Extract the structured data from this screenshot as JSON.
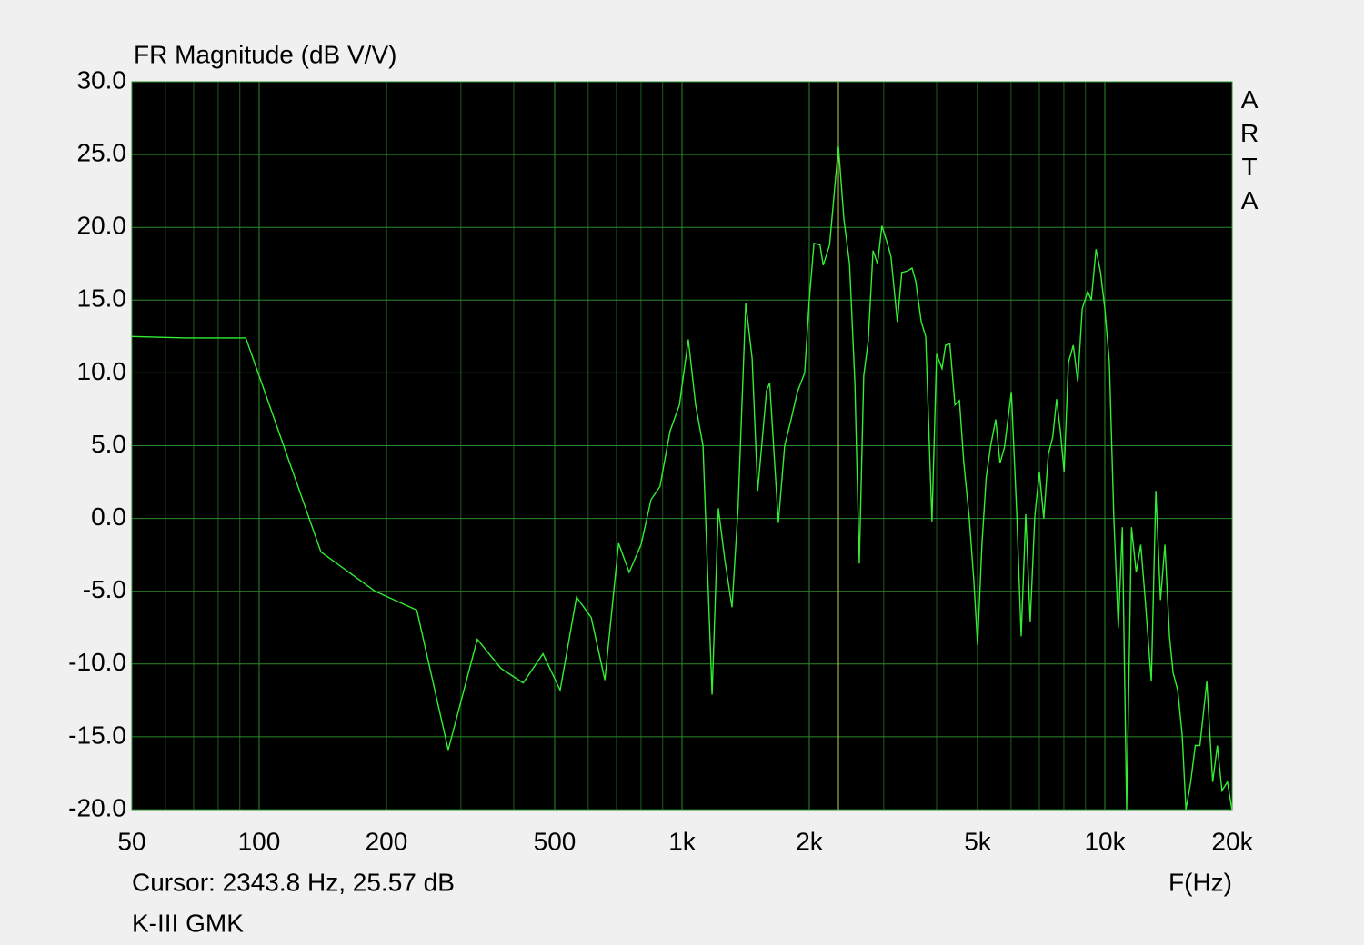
{
  "chart_data": {
    "type": "line",
    "title": "FR Magnitude (dB V/V)",
    "x_label": "F(Hz)",
    "cursor_label": "Cursor:  2343.8 Hz, 25.57 dB",
    "cursor": {
      "x": 2343.8,
      "color": "#c8c850"
    },
    "watermark": "ARTA",
    "log_x": true,
    "grid": true,
    "grid_color": "#2a8a2a",
    "minor_grid_color": "#1d5c1d",
    "xlim": [
      50,
      20000
    ],
    "ylim": [
      -20,
      30
    ],
    "xticks": [
      50,
      100,
      200,
      500,
      {
        "value": 1000,
        "label": "1k"
      },
      {
        "value": 2000,
        "label": "2k"
      },
      {
        "value": 5000,
        "label": "5k"
      },
      {
        "value": 10000,
        "label": "10k"
      },
      {
        "value": 20000,
        "label": "20k"
      }
    ],
    "x_minor_ticks": [
      60,
      70,
      80,
      90,
      300,
      400,
      600,
      700,
      800,
      900,
      3000,
      4000,
      6000,
      7000,
      8000,
      9000
    ],
    "yticks": [
      {
        "value": 30,
        "label": "30.0"
      },
      {
        "value": 25,
        "label": "25.0"
      },
      {
        "value": 20,
        "label": "20.0"
      },
      {
        "value": 15,
        "label": "15.0"
      },
      {
        "value": 10,
        "label": "10.0"
      },
      {
        "value": 5,
        "label": "5.0"
      },
      {
        "value": 0,
        "label": "0.0"
      },
      {
        "value": -5,
        "label": "-5.0"
      },
      {
        "value": -10,
        "label": "-10.0"
      },
      {
        "value": -15,
        "label": "-15.0"
      },
      {
        "value": -20,
        "label": "-20.0"
      }
    ],
    "x": [
      50,
      67,
      93,
      140,
      188,
      236,
      280,
      328,
      373,
      421,
      469,
      515,
      563,
      610,
      657,
      708,
      750,
      800,
      845,
      887,
      937,
      986,
      1035,
      1077,
      1121,
      1178,
      1219,
      1262,
      1313,
      1357,
      1415,
      1465,
      1510,
      1585,
      1612,
      1690,
      1749,
      1811,
      1875,
      1950,
      2000,
      2051,
      2120,
      2158,
      2234,
      2343.8,
      2414,
      2490,
      2563,
      2626,
      2690,
      2757,
      2830,
      2900,
      2970,
      3045,
      3120,
      3230,
      3310,
      3410,
      3500,
      3570,
      3680,
      3770,
      3900,
      4000,
      4120,
      4200,
      4300,
      4420,
      4530,
      4640,
      4780,
      4900,
      5000,
      5120,
      5240,
      5370,
      5520,
      5650,
      5790,
      6010,
      6190,
      6340,
      6500,
      6660,
      6830,
      7000,
      7170,
      7350,
      7530,
      7690,
      7850,
      8010,
      8200,
      8420,
      8630,
      8840,
      9110,
      9290,
      9530,
      9770,
      10000,
      10250,
      10500,
      10760,
      11000,
      11260,
      11560,
      11860,
      12160,
      12460,
      12880,
      13200,
      13540,
      13870,
      14220,
      14500,
      14870,
      15240,
      15550,
      15960,
      16360,
      16780,
      17420,
      17990,
      18450,
      18920,
      19490,
      19980
    ],
    "series": [
      {
        "name": "K-III GMK",
        "color": "#33ee33",
        "values": [
          12.5,
          12.4,
          12.4,
          -2.3,
          -5.0,
          -6.3,
          -15.9,
          -8.3,
          -10.3,
          -11.3,
          -9.3,
          -11.8,
          -5.4,
          -6.8,
          -11.1,
          -1.7,
          -3.7,
          -1.8,
          1.3,
          2.2,
          6.0,
          7.8,
          12.3,
          7.8,
          5.0,
          -12.1,
          0.7,
          -2.8,
          -6.1,
          0.7,
          14.8,
          11.0,
          1.9,
          8.8,
          9.3,
          -0.3,
          5.0,
          6.8,
          8.7,
          10.0,
          15.0,
          18.9,
          18.8,
          17.4,
          18.8,
          25.57,
          20.6,
          17.5,
          9.4,
          -3.1,
          9.8,
          12.2,
          18.4,
          17.5,
          20.1,
          19.1,
          18.0,
          13.5,
          16.9,
          17.0,
          17.2,
          16.3,
          13.5,
          12.5,
          -0.2,
          11.3,
          10.3,
          11.9,
          12.0,
          7.8,
          8.1,
          3.8,
          0.0,
          -4.3,
          -8.7,
          -1.8,
          2.8,
          5.0,
          6.8,
          3.8,
          4.9,
          8.7,
          0.3,
          -8.1,
          0.3,
          -7.1,
          0.2,
          3.2,
          0.0,
          4.4,
          5.6,
          8.2,
          6.0,
          3.2,
          10.7,
          11.9,
          9.4,
          14.4,
          15.6,
          15.0,
          18.5,
          16.9,
          14.4,
          10.7,
          0.1,
          -7.5,
          -0.6,
          -20,
          -0.6,
          -3.7,
          -1.8,
          -5.6,
          -11.2,
          1.9,
          -5.6,
          -1.8,
          -8.1,
          -10.6,
          -11.8,
          -14.9,
          -20,
          -18.1,
          -15.6,
          -15.6,
          -11.2,
          -18.1,
          -15.6,
          -18.7,
          -18.1,
          -20
        ]
      }
    ]
  }
}
